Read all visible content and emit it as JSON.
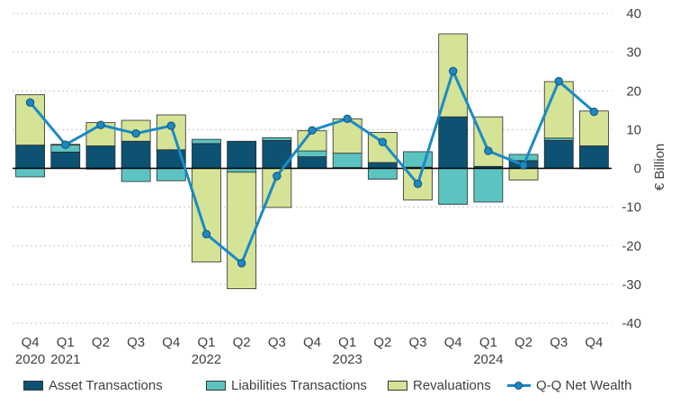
{
  "chart_data": {
    "type": "bar",
    "stacked": true,
    "categories": [
      [
        "Q4",
        "2020"
      ],
      [
        "Q1",
        "2021"
      ],
      [
        "Q2",
        ""
      ],
      [
        "Q3",
        ""
      ],
      [
        "Q4",
        ""
      ],
      [
        "Q1",
        "2022"
      ],
      [
        "Q2",
        ""
      ],
      [
        "Q3",
        ""
      ],
      [
        "Q4",
        ""
      ],
      [
        "Q1",
        "2023"
      ],
      [
        "Q2",
        ""
      ],
      [
        "Q3",
        ""
      ],
      [
        "Q4",
        ""
      ],
      [
        "Q1",
        "2024"
      ],
      [
        "Q2",
        ""
      ],
      [
        "Q3",
        ""
      ],
      [
        "Q4",
        ""
      ]
    ],
    "series": [
      {
        "name": "Asset Transactions",
        "kind": "bar",
        "color": "#0d5272",
        "values": [
          6.0,
          4.2,
          5.8,
          7.0,
          4.8,
          6.4,
          7.0,
          7.2,
          3.0,
          0.2,
          1.5,
          0.3,
          13.3,
          0.5,
          2.0,
          7.2,
          5.8
        ]
      },
      {
        "name": "Liabilities Transactions",
        "kind": "bar",
        "color": "#5bc4c1",
        "values": [
          -2.2,
          1.8,
          -0.2,
          -3.4,
          -3.2,
          1.1,
          -1.0,
          0.7,
          1.5,
          3.7,
          -2.8,
          4.0,
          -9.3,
          -8.7,
          1.6,
          0.6,
          -0.1
        ]
      },
      {
        "name": "Revaluations",
        "kind": "bar",
        "color": "#d4e396",
        "values": [
          13.0,
          0.2,
          6.0,
          5.4,
          9.0,
          -24.2,
          -30.1,
          -10.1,
          5.2,
          8.9,
          7.8,
          -8.2,
          21.4,
          12.8,
          -3.0,
          14.6,
          9.0
        ]
      },
      {
        "name": "Q-Q Net Wealth",
        "kind": "line",
        "color": "#1a8ac6",
        "values": [
          17.0,
          6.1,
          11.2,
          9.0,
          11.0,
          -17.0,
          -24.5,
          -2.0,
          9.8,
          12.8,
          6.8,
          -4.0,
          25.1,
          4.5,
          0.8,
          22.5,
          14.6
        ]
      }
    ],
    "yaxis": {
      "label": "€ Billion",
      "min": -40,
      "max": 40,
      "step": 10,
      "position": "right",
      "gridlines": "dashed"
    },
    "legend": {
      "position": "bottom"
    }
  }
}
